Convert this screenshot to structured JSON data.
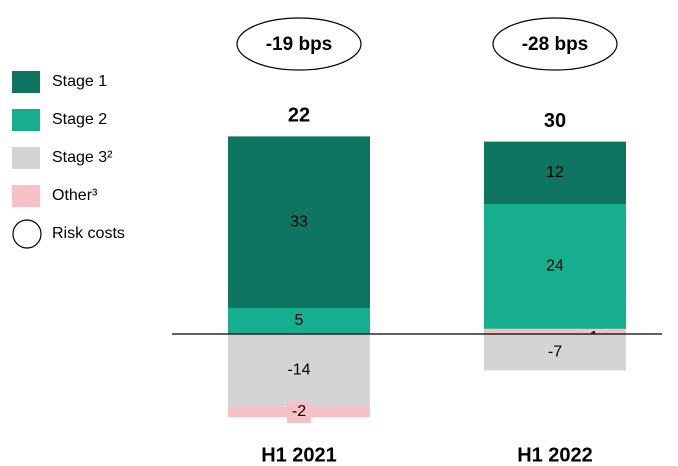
{
  "chart_data": {
    "type": "stacked_bar",
    "categories": [
      "H1 2021",
      "H1 2022"
    ],
    "series": [
      {
        "name": "Stage 1",
        "color": "#0f7460",
        "values": [
          33,
          12
        ]
      },
      {
        "name": "Stage 2",
        "color": "#17ad8f",
        "values": [
          5,
          24
        ]
      },
      {
        "name": "Stage 3²",
        "color": "#d4d4d4",
        "values": [
          -14,
          -7
        ]
      },
      {
        "name": "Other³",
        "color": "#f7c0c4",
        "values": [
          -2,
          1
        ]
      }
    ],
    "totals": [
      22,
      30
    ],
    "annotations": [
      "-19 bps",
      "-28 bps"
    ],
    "annotation_legend": "Risk costs"
  }
}
